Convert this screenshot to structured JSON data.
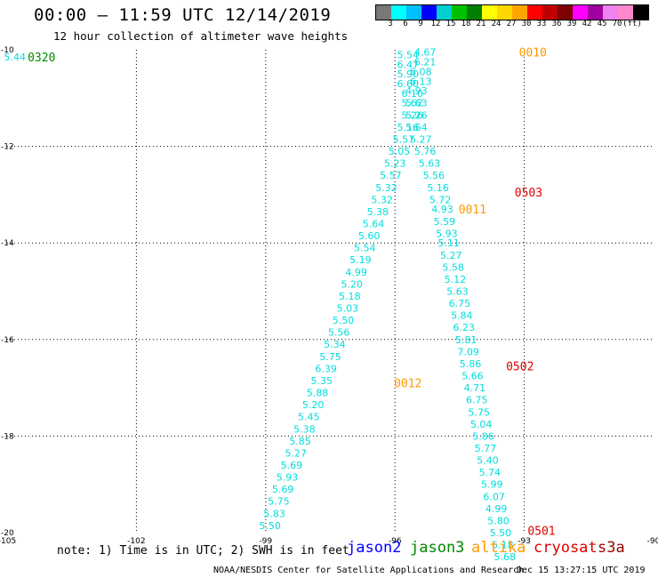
{
  "title": "00:00 – 11:59 UTC 12/14/2019",
  "subtitle": "12 hour collection of altimeter wave heights",
  "colorbar": {
    "colors": [
      "#787878",
      "#00ffff",
      "#00bfff",
      "#0000ff",
      "#00d0d0",
      "#00c000",
      "#008000",
      "#ffff00",
      "#ffd700",
      "#ffa500",
      "#ff0000",
      "#c00000",
      "#800000",
      "#ff00ff",
      "#a000a0",
      "#ee82ee",
      "#ff88cc",
      "#000000"
    ],
    "tick_labels": [
      "3",
      "6",
      "9",
      "12",
      "15",
      "18",
      "21",
      "24",
      "27",
      "30",
      "33",
      "36",
      "39",
      "42",
      "45",
      "70",
      "(ft)"
    ]
  },
  "note": "note: 1) Time is in UTC; 2) SWH is in feet",
  "satellites": [
    {
      "name": "jason2",
      "color": "#0000ff"
    },
    {
      "name": "jason3",
      "color": "#008800"
    },
    {
      "name": "altika",
      "color": "#ff9900"
    },
    {
      "name": "cryosat",
      "color": "#dd0000"
    },
    {
      "name": "s3a",
      "color": "#990000"
    }
  ],
  "credit": "NOAA/NESDIS Center for Satellite Applications and Research",
  "timestamp": "Dec 15 13:27:15 UTC 2019",
  "chart_data": {
    "type": "scatter",
    "xlim": [
      -105,
      -90
    ],
    "ylim": [
      -20,
      -10
    ],
    "x_ticks": [
      -105,
      -102,
      -99,
      -96,
      -93,
      -90
    ],
    "y_ticks": [
      -10,
      -12,
      -14,
      -16,
      -18,
      -20
    ],
    "x_tick_labels": [
      "-105",
      "-102",
      "-99",
      "-96",
      "-93",
      "-90"
    ],
    "y_tick_labels": [
      "-10",
      "-12",
      "-14",
      "-16",
      "-18",
      "-20"
    ],
    "grid": true,
    "series": [
      {
        "color": "#00dddd",
        "points": [
          {
            "x": -104.82,
            "y": -10.15,
            "v": "5.44"
          },
          {
            "x": -95.7,
            "y": -10.1,
            "v": "5.54"
          },
          {
            "x": -95.7,
            "y": -10.3,
            "v": "6.47"
          },
          {
            "x": -95.7,
            "y": -10.5,
            "v": "5.90"
          },
          {
            "x": -95.7,
            "y": -10.7,
            "v": "6.60"
          },
          {
            "x": -95.6,
            "y": -10.9,
            "v": "6.10"
          },
          {
            "x": -95.6,
            "y": -11.1,
            "v": "5.62"
          },
          {
            "x": -95.6,
            "y": -11.35,
            "v": "5.26"
          },
          {
            "x": -95.7,
            "y": -11.6,
            "v": "5.16"
          },
          {
            "x": -95.8,
            "y": -11.85,
            "v": "5.57"
          },
          {
            "x": -95.9,
            "y": -12.1,
            "v": "5.05"
          },
          {
            "x": -96.0,
            "y": -12.35,
            "v": "5.23"
          },
          {
            "x": -96.1,
            "y": -12.6,
            "v": "5.57"
          },
          {
            "x": -96.2,
            "y": -12.85,
            "v": "5.32"
          },
          {
            "x": -96.3,
            "y": -13.1,
            "v": "5.32"
          },
          {
            "x": -96.4,
            "y": -13.35,
            "v": "5.38"
          },
          {
            "x": -96.5,
            "y": -13.6,
            "v": "5.64"
          },
          {
            "x": -96.6,
            "y": -13.85,
            "v": "5.60"
          },
          {
            "x": -96.7,
            "y": -14.1,
            "v": "5.54"
          },
          {
            "x": -96.8,
            "y": -14.35,
            "v": "5.19"
          },
          {
            "x": -96.9,
            "y": -14.6,
            "v": "4.99"
          },
          {
            "x": -97.0,
            "y": -14.85,
            "v": "5.20"
          },
          {
            "x": -97.05,
            "y": -15.1,
            "v": "5.18"
          },
          {
            "x": -97.1,
            "y": -15.35,
            "v": "5.03"
          },
          {
            "x": -97.2,
            "y": -15.6,
            "v": "5.50"
          },
          {
            "x": -97.3,
            "y": -15.85,
            "v": "5.56"
          },
          {
            "x": -97.4,
            "y": -16.1,
            "v": "5.34"
          },
          {
            "x": -97.5,
            "y": -16.35,
            "v": "5.75"
          },
          {
            "x": -97.6,
            "y": -16.6,
            "v": "6.39"
          },
          {
            "x": -97.7,
            "y": -16.85,
            "v": "5.35"
          },
          {
            "x": -97.8,
            "y": -17.1,
            "v": "5.88"
          },
          {
            "x": -97.9,
            "y": -17.35,
            "v": "5.20"
          },
          {
            "x": -98.0,
            "y": -17.6,
            "v": "5.45"
          },
          {
            "x": -98.1,
            "y": -17.85,
            "v": "5.38"
          },
          {
            "x": -98.2,
            "y": -18.1,
            "v": "5.85"
          },
          {
            "x": -98.3,
            "y": -18.35,
            "v": "5.27"
          },
          {
            "x": -98.4,
            "y": -18.6,
            "v": "5.69"
          },
          {
            "x": -98.5,
            "y": -18.85,
            "v": "5.93"
          },
          {
            "x": -98.6,
            "y": -19.1,
            "v": "5.69"
          },
          {
            "x": -98.7,
            "y": -19.35,
            "v": "5.75"
          },
          {
            "x": -98.8,
            "y": -19.6,
            "v": "5.83"
          },
          {
            "x": -98.9,
            "y": -19.85,
            "v": "5.50"
          },
          {
            "x": -95.3,
            "y": -10.05,
            "v": "4.67"
          },
          {
            "x": -95.3,
            "y": -10.25,
            "v": "6.21"
          },
          {
            "x": -95.4,
            "y": -10.45,
            "v": "6.08"
          },
          {
            "x": -95.4,
            "y": -10.65,
            "v": "6.13"
          },
          {
            "x": -95.5,
            "y": -10.85,
            "v": "4.93"
          },
          {
            "x": -95.5,
            "y": -11.1,
            "v": "5.63"
          },
          {
            "x": -95.5,
            "y": -11.35,
            "v": "5.26"
          },
          {
            "x": -95.5,
            "y": -11.6,
            "v": "5.64"
          },
          {
            "x": -95.4,
            "y": -11.85,
            "v": "5.27"
          },
          {
            "x": -95.3,
            "y": -12.1,
            "v": "5.76"
          },
          {
            "x": -95.2,
            "y": -12.35,
            "v": "5.63"
          },
          {
            "x": -95.1,
            "y": -12.6,
            "v": "5.56"
          },
          {
            "x": -95.0,
            "y": -12.85,
            "v": "5.16"
          },
          {
            "x": -94.95,
            "y": -13.1,
            "v": "5.72"
          },
          {
            "x": -94.9,
            "y": -13.3,
            "v": "4.93"
          },
          {
            "x": -94.85,
            "y": -13.55,
            "v": "5.59"
          },
          {
            "x": -94.8,
            "y": -13.8,
            "v": "5.93"
          },
          {
            "x": -94.75,
            "y": -14.0,
            "v": "5.11"
          },
          {
            "x": -94.7,
            "y": -14.25,
            "v": "5.27"
          },
          {
            "x": -94.65,
            "y": -14.5,
            "v": "5.58"
          },
          {
            "x": -94.6,
            "y": -14.75,
            "v": "5.12"
          },
          {
            "x": -94.55,
            "y": -15.0,
            "v": "5.63"
          },
          {
            "x": -94.5,
            "y": -15.25,
            "v": "6.75"
          },
          {
            "x": -94.45,
            "y": -15.5,
            "v": "5.84"
          },
          {
            "x": -94.4,
            "y": -15.75,
            "v": "6.23"
          },
          {
            "x": -94.35,
            "y": -16.0,
            "v": "5.81"
          },
          {
            "x": -94.3,
            "y": -16.25,
            "v": "7.09"
          },
          {
            "x": -94.25,
            "y": -16.5,
            "v": "5.86"
          },
          {
            "x": -94.2,
            "y": -16.75,
            "v": "5.66"
          },
          {
            "x": -94.15,
            "y": -17.0,
            "v": "4.71"
          },
          {
            "x": -94.1,
            "y": -17.25,
            "v": "6.75"
          },
          {
            "x": -94.05,
            "y": -17.5,
            "v": "5.75"
          },
          {
            "x": -94.0,
            "y": -17.75,
            "v": "5.04"
          },
          {
            "x": -93.95,
            "y": -18.0,
            "v": "5.86"
          },
          {
            "x": -93.9,
            "y": -18.25,
            "v": "5.77"
          },
          {
            "x": -93.85,
            "y": -18.5,
            "v": "5.40"
          },
          {
            "x": -93.8,
            "y": -18.75,
            "v": "5.74"
          },
          {
            "x": -93.75,
            "y": -19.0,
            "v": "5.99"
          },
          {
            "x": -93.7,
            "y": -19.25,
            "v": "6.07"
          },
          {
            "x": -93.65,
            "y": -19.5,
            "v": "4.99"
          },
          {
            "x": -93.6,
            "y": -19.75,
            "v": "5.80"
          },
          {
            "x": -93.55,
            "y": -20.0,
            "v": "5.50"
          },
          {
            "x": -93.5,
            "y": -20.25,
            "v": "5.18"
          },
          {
            "x": -93.45,
            "y": -20.5,
            "v": "5.68"
          }
        ]
      }
    ],
    "time_labels": [
      {
        "x": -104.2,
        "y": -10.15,
        "text": "0320",
        "color": "#008800"
      },
      {
        "x": -92.8,
        "y": -10.05,
        "text": "0010",
        "color": "#ff9900"
      },
      {
        "x": -92.9,
        "y": -12.95,
        "text": "0503",
        "color": "#dd0000"
      },
      {
        "x": -94.2,
        "y": -13.3,
        "text": "0011",
        "color": "#ff9900"
      },
      {
        "x": -93.1,
        "y": -16.55,
        "text": "0502",
        "color": "#dd0000"
      },
      {
        "x": -95.7,
        "y": -16.9,
        "text": "0012",
        "color": "#ff9900"
      },
      {
        "x": -92.6,
        "y": -19.95,
        "text": "0501",
        "color": "#dd0000"
      }
    ]
  }
}
